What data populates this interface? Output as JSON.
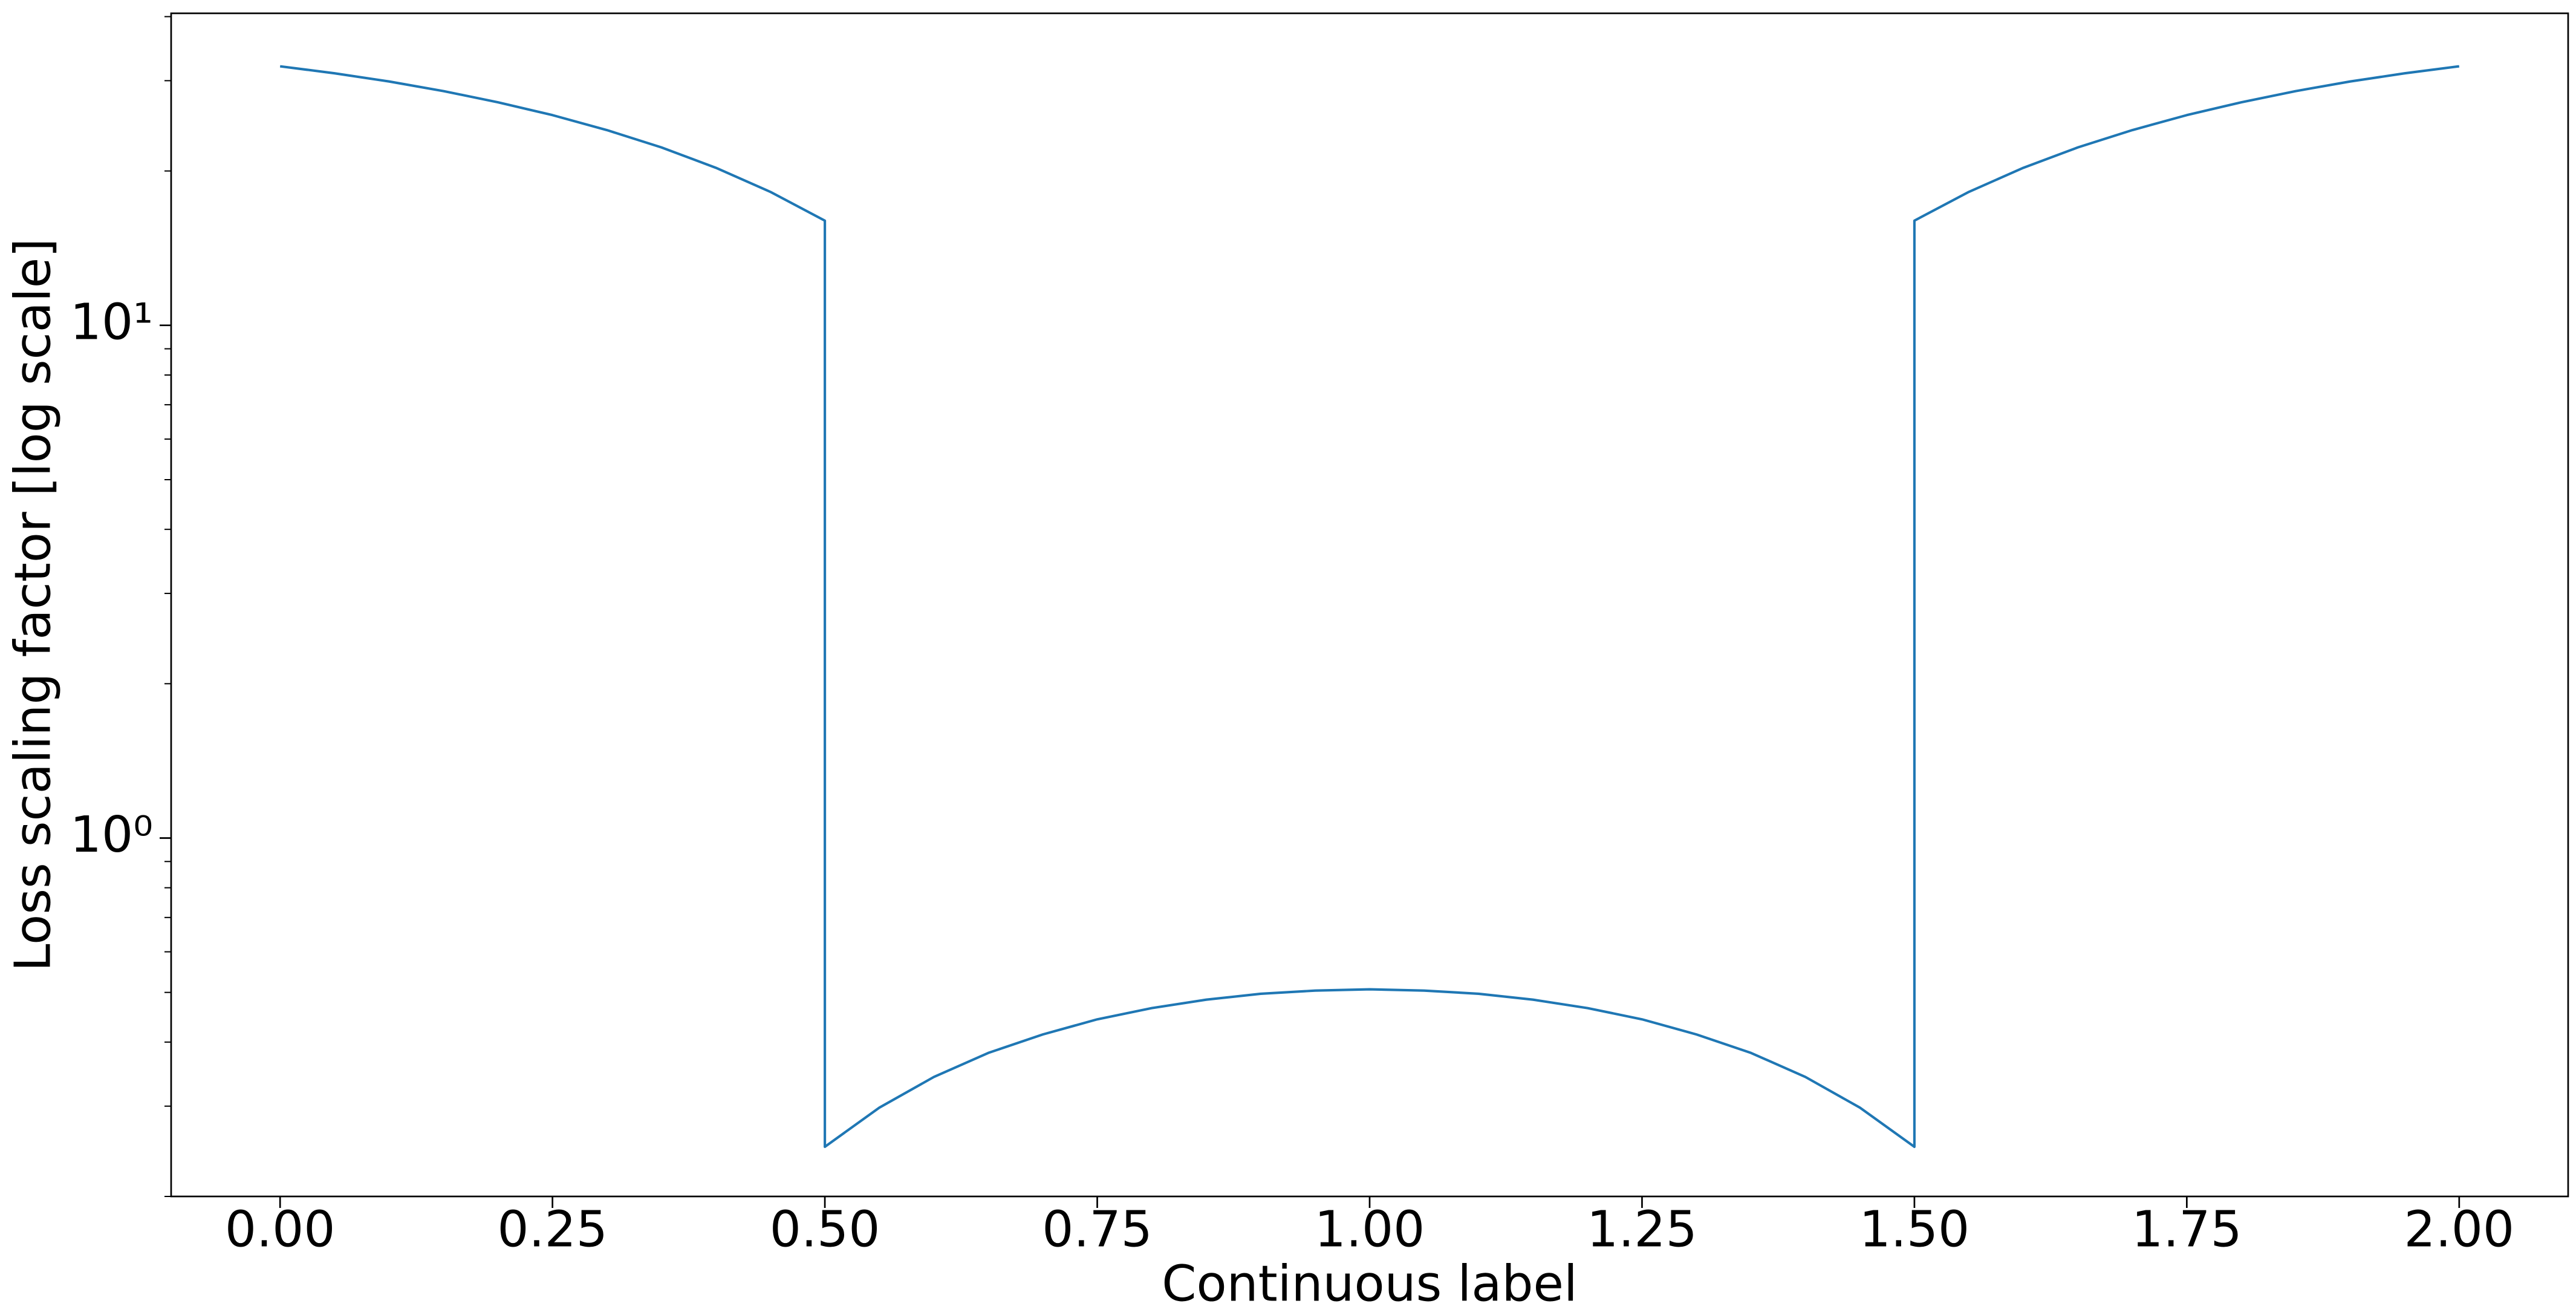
{
  "chart_data": {
    "type": "line",
    "x_label": "Continuous label",
    "y_label": "Loss scaling factor [log scale]",
    "x": [
      0,
      0.05,
      0.1,
      0.15,
      0.2,
      0.25,
      0.3,
      0.35,
      0.4,
      0.45,
      0.5,
      0.5,
      0.55,
      0.6,
      0.65,
      0.7,
      0.75,
      0.8,
      0.85,
      0.9,
      0.95,
      1.0,
      1.05,
      1.1,
      1.15,
      1.2,
      1.25,
      1.3,
      1.35,
      1.4,
      1.45,
      1.5,
      1.5,
      1.55,
      1.6,
      1.65,
      1.7,
      1.75,
      1.8,
      1.85,
      1.9,
      1.95,
      2.0
    ],
    "values": [
      32,
      31.01,
      29.89,
      28.63,
      27.23,
      25.7,
      24.03,
      22.23,
      20.29,
      18.21,
      16.0,
      0.25,
      0.298,
      0.342,
      0.381,
      0.414,
      0.443,
      0.466,
      0.484,
      0.497,
      0.504,
      0.507,
      0.504,
      0.497,
      0.484,
      0.466,
      0.443,
      0.414,
      0.381,
      0.342,
      0.298,
      0.25,
      16.0,
      18.21,
      20.29,
      22.23,
      24.03,
      25.7,
      27.23,
      28.63,
      29.89,
      31.01,
      32
    ],
    "color": "#1f77b4",
    "xlim": [
      -0.1,
      2.1
    ],
    "xticks": [
      {
        "value": 0,
        "label": "0.00"
      },
      {
        "value": 0.25,
        "label": "0.25"
      },
      {
        "value": 0.5,
        "label": "0.50"
      },
      {
        "value": 0.75,
        "label": "0.75"
      },
      {
        "value": 1,
        "label": "1.00"
      },
      {
        "value": 1.25,
        "label": "1.25"
      },
      {
        "value": 1.5,
        "label": "1.50"
      },
      {
        "value": 1.75,
        "label": "1.75"
      },
      {
        "value": 2,
        "label": "2.00"
      }
    ],
    "ylim": [
      0.2,
      40.6
    ],
    "ylog": true,
    "yticks": [
      {
        "value": 1,
        "label": "10⁰"
      },
      {
        "value": 10,
        "label": "10¹"
      }
    ],
    "yminorticks": [
      0.2,
      0.3,
      0.4,
      0.5,
      0.6,
      0.7,
      0.8,
      0.9,
      2,
      3,
      4,
      5,
      6,
      7,
      8,
      9,
      20,
      30,
      40
    ],
    "grid": false
  }
}
